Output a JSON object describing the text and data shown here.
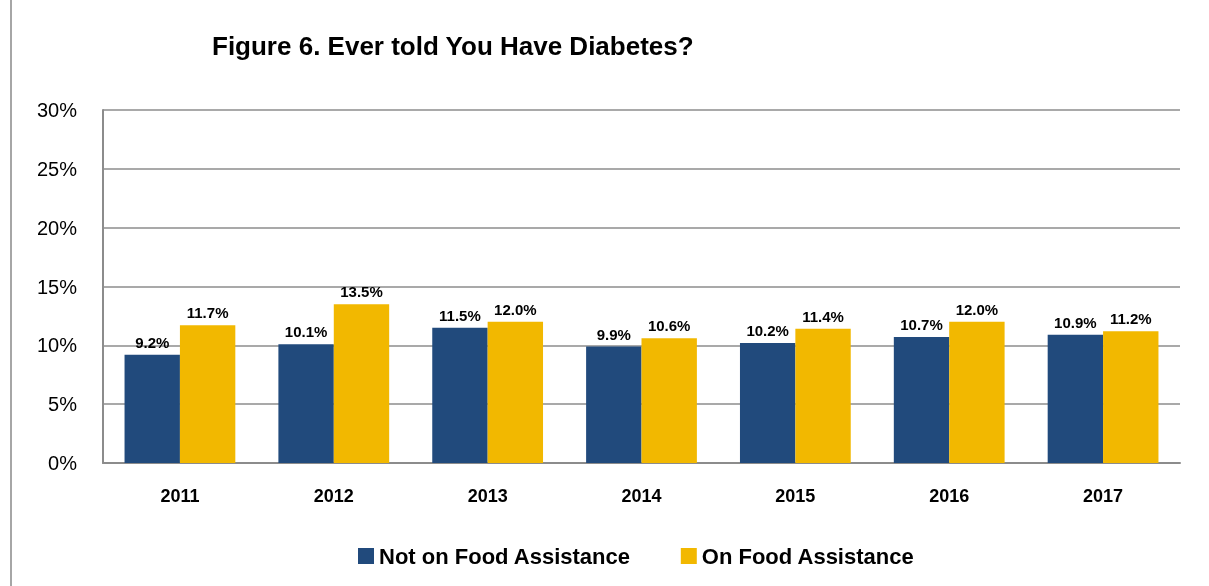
{
  "chart_data": {
    "type": "bar",
    "title": "Figure 6. Ever told You Have Diabetes?",
    "categories": [
      "2011",
      "2012",
      "2013",
      "2014",
      "2015",
      "2016",
      "2017"
    ],
    "series": [
      {
        "name": "Not on Food Assistance",
        "color": "#214a7c",
        "values": [
          9.2,
          10.1,
          11.5,
          9.9,
          10.2,
          10.7,
          10.9
        ],
        "value_labels": [
          "9.2%",
          "10.1%",
          "11.5%",
          "9.9%",
          "10.2%",
          "10.7%",
          "10.9%"
        ]
      },
      {
        "name": "On Food Assistance",
        "color": "#f2b800",
        "values": [
          11.7,
          13.5,
          12.0,
          10.6,
          11.4,
          12.0,
          11.2
        ],
        "value_labels": [
          "11.7%",
          "13.5%",
          "12.0%",
          "10.6%",
          "11.4%",
          "12.0%",
          "11.2%"
        ]
      }
    ],
    "ylim": [
      0,
      30
    ],
    "yticks": [
      {
        "value": 0,
        "label": "0%"
      },
      {
        "value": 5,
        "label": "5%"
      },
      {
        "value": 10,
        "label": "10%"
      },
      {
        "value": 15,
        "label": "15%"
      },
      {
        "value": 20,
        "label": "20%"
      },
      {
        "value": 25,
        "label": "25%"
      },
      {
        "value": 30,
        "label": "30%"
      }
    ],
    "grid": "y",
    "legend": "bottom"
  }
}
